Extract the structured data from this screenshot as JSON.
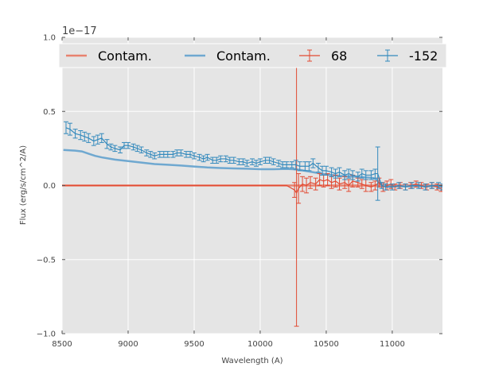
{
  "chart_data": {
    "type": "line",
    "title": "",
    "xlabel": "Wavelength (A)",
    "ylabel": "Flux (erg/s/cm^2/A)",
    "offset_label": "1e−17",
    "xlim": [
      8500,
      11380
    ],
    "ylim": [
      -1.0,
      1.0
    ],
    "y_scale_factor": 1e-17,
    "grid": true,
    "legend_position": "top",
    "x_ticks": [
      8500,
      9000,
      9500,
      10000,
      10500,
      11000
    ],
    "x_tick_labels": [
      "8500",
      "9000",
      "9500",
      "10000",
      "10500",
      "11000"
    ],
    "y_ticks": [
      -1.0,
      -0.5,
      0.0,
      0.5,
      1.0
    ],
    "y_tick_labels": [
      "−1.0",
      "−0.5",
      "0.0",
      "0.5",
      "1.0"
    ],
    "colors": {
      "red": "#e24a33",
      "blue": "#348abd",
      "red_light": "#e8826f",
      "blue_light": "#6fa8d0"
    },
    "series": [
      {
        "name": "Contam.",
        "kind": "line",
        "color": "#e8826f",
        "x": [
          8500,
          10250,
          10300,
          10500,
          10700,
          10900,
          11000,
          11100,
          11200,
          11380
        ],
        "y": [
          0.0,
          0.0,
          0.0,
          0.0,
          0.0,
          0.0,
          0.0,
          0.0,
          0.0,
          0.0
        ]
      },
      {
        "name": "Contam.",
        "kind": "line",
        "color": "#6fa8d0",
        "x": [
          8510,
          8600,
          8650,
          8700,
          8750,
          8800,
          8900,
          9000,
          9100,
          9200,
          9300,
          9400,
          9500,
          9600,
          9700,
          9800,
          9900,
          10000,
          10100,
          10200,
          10250,
          10300,
          10400,
          10500,
          10600,
          10700,
          10800,
          10850,
          10880,
          10920,
          11000,
          11100,
          11200,
          11300,
          11380
        ],
        "y": [
          0.24,
          0.235,
          0.23,
          0.215,
          0.2,
          0.19,
          0.175,
          0.165,
          0.155,
          0.145,
          0.14,
          0.135,
          0.128,
          0.122,
          0.118,
          0.115,
          0.113,
          0.11,
          0.11,
          0.112,
          0.11,
          0.105,
          0.09,
          0.075,
          0.065,
          0.06,
          0.055,
          0.052,
          0.04,
          0.0,
          -0.005,
          -0.005,
          -0.005,
          -0.005,
          -0.005
        ]
      },
      {
        "name": "68",
        "kind": "errorbar",
        "color": "#e24a33",
        "x": [
          8500,
          10200,
          10260,
          10275,
          10290,
          10320,
          10350,
          10380,
          10420,
          10450,
          10480,
          10510,
          10540,
          10570,
          10600,
          10640,
          10670,
          10700,
          10740,
          10770,
          10800,
          10840,
          10870,
          10900,
          10930,
          10960,
          10990,
          11020,
          11060,
          11100,
          11140,
          11180,
          11220,
          11260,
          11300,
          11340,
          11370
        ],
        "y": [
          0.0,
          0.0,
          -0.03,
          -0.05,
          -0.02,
          0.01,
          0.0,
          0.02,
          0.01,
          0.04,
          0.03,
          0.04,
          0.02,
          0.03,
          0.01,
          0.02,
          0.0,
          0.03,
          0.02,
          0.01,
          0.0,
          -0.01,
          0.0,
          0.02,
          -0.01,
          0.0,
          0.01,
          -0.01,
          0.0,
          -0.01,
          0.0,
          0.01,
          0.0,
          -0.01,
          0.0,
          -0.01,
          -0.02
        ],
        "err": [
          0.0,
          0.0,
          0.05,
          0.9,
          0.1,
          0.05,
          0.05,
          0.04,
          0.04,
          0.04,
          0.04,
          0.04,
          0.04,
          0.04,
          0.04,
          0.04,
          0.04,
          0.04,
          0.03,
          0.03,
          0.04,
          0.03,
          0.03,
          0.03,
          0.03,
          0.03,
          0.03,
          0.02,
          0.02,
          0.02,
          0.02,
          0.02,
          0.02,
          0.02,
          0.02,
          0.02,
          0.02
        ]
      },
      {
        "name": "-152",
        "kind": "errorbar",
        "color": "#348abd",
        "x": [
          8530,
          8560,
          8600,
          8640,
          8670,
          8700,
          8740,
          8770,
          8800,
          8840,
          8870,
          8900,
          8940,
          8970,
          9000,
          9040,
          9070,
          9100,
          9140,
          9170,
          9200,
          9240,
          9270,
          9300,
          9340,
          9370,
          9400,
          9440,
          9470,
          9500,
          9540,
          9570,
          9600,
          9640,
          9670,
          9700,
          9740,
          9770,
          9800,
          9840,
          9870,
          9900,
          9940,
          9970,
          10000,
          10040,
          10070,
          10100,
          10140,
          10170,
          10200,
          10240,
          10270,
          10300,
          10340,
          10370,
          10400,
          10440,
          10470,
          10500,
          10540,
          10570,
          10600,
          10640,
          10670,
          10700,
          10740,
          10770,
          10800,
          10840,
          10870,
          10890,
          10920,
          10950,
          11000,
          11050,
          11100,
          11150,
          11200,
          11250,
          11300,
          11350,
          11380
        ],
        "y": [
          0.39,
          0.38,
          0.35,
          0.34,
          0.33,
          0.32,
          0.3,
          0.31,
          0.32,
          0.28,
          0.26,
          0.25,
          0.24,
          0.27,
          0.27,
          0.26,
          0.25,
          0.24,
          0.22,
          0.21,
          0.2,
          0.21,
          0.21,
          0.21,
          0.21,
          0.22,
          0.22,
          0.21,
          0.21,
          0.2,
          0.19,
          0.18,
          0.19,
          0.17,
          0.17,
          0.18,
          0.18,
          0.17,
          0.17,
          0.16,
          0.16,
          0.15,
          0.16,
          0.15,
          0.16,
          0.17,
          0.17,
          0.16,
          0.15,
          0.14,
          0.14,
          0.14,
          0.14,
          0.13,
          0.13,
          0.13,
          0.15,
          0.12,
          0.1,
          0.1,
          0.09,
          0.08,
          0.09,
          0.07,
          0.08,
          0.07,
          0.06,
          0.08,
          0.07,
          0.07,
          0.08,
          0.08,
          0.0,
          -0.01,
          -0.01,
          0.0,
          -0.01,
          0.0,
          0.0,
          -0.01,
          0.0,
          0.0,
          -0.01
        ],
        "err": [
          0.04,
          0.04,
          0.03,
          0.03,
          0.03,
          0.03,
          0.03,
          0.03,
          0.03,
          0.03,
          0.02,
          0.02,
          0.02,
          0.02,
          0.02,
          0.02,
          0.02,
          0.02,
          0.02,
          0.02,
          0.02,
          0.02,
          0.02,
          0.02,
          0.02,
          0.02,
          0.02,
          0.02,
          0.02,
          0.02,
          0.02,
          0.02,
          0.02,
          0.02,
          0.02,
          0.02,
          0.02,
          0.02,
          0.02,
          0.02,
          0.02,
          0.02,
          0.02,
          0.02,
          0.02,
          0.02,
          0.02,
          0.02,
          0.02,
          0.02,
          0.02,
          0.02,
          0.03,
          0.03,
          0.03,
          0.03,
          0.03,
          0.03,
          0.03,
          0.03,
          0.03,
          0.03,
          0.03,
          0.03,
          0.03,
          0.03,
          0.03,
          0.03,
          0.03,
          0.03,
          0.03,
          0.18,
          0.02,
          0.02,
          0.02,
          0.02,
          0.02,
          0.02,
          0.02,
          0.02,
          0.02,
          0.02,
          0.02
        ]
      }
    ],
    "legend": [
      {
        "label": "Contam.",
        "kind": "line",
        "color": "#e8826f"
      },
      {
        "label": "Contam.",
        "kind": "line",
        "color": "#6fa8d0"
      },
      {
        "label": "68",
        "kind": "errorbar",
        "color": "#e24a33"
      },
      {
        "label": "-152",
        "kind": "errorbar",
        "color": "#348abd"
      }
    ]
  }
}
